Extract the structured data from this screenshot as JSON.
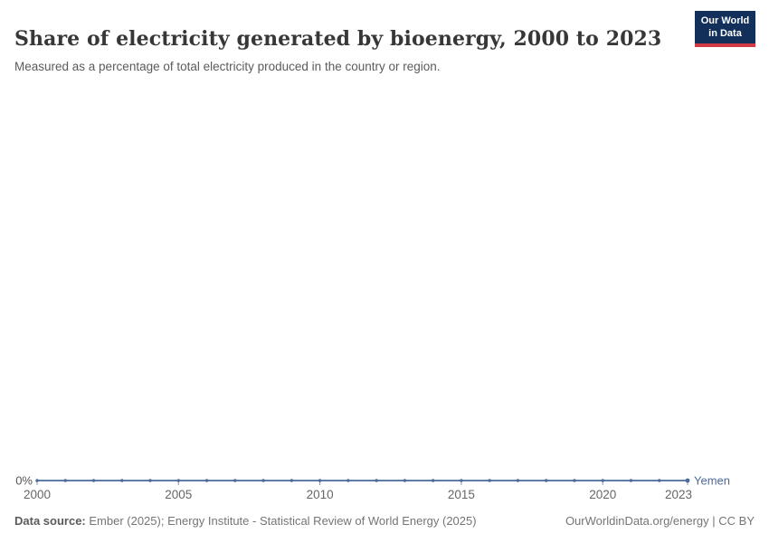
{
  "header": {
    "title": "Share of electricity generated by bioenergy, 2000 to 2023",
    "subtitle": "Measured as a percentage of total electricity produced in the country or region."
  },
  "logo": {
    "line1": "Our World",
    "line2": "in Data",
    "bg_color": "#12305a",
    "bar_color": "#d13a44"
  },
  "chart_data": {
    "type": "line",
    "title": "Share of electricity generated by bioenergy, 2000 to 2023",
    "xlabel": "",
    "ylabel": "",
    "y_axis": {
      "tick_label": "0%",
      "min": 0
    },
    "x_ticks": [
      2000,
      2005,
      2010,
      2015,
      2020,
      2023
    ],
    "xlim": [
      2000,
      2023
    ],
    "grid": false,
    "legend_position": "right-of-line",
    "series": [
      {
        "name": "Yemen",
        "color": "#4C6A9C",
        "x": [
          2000,
          2001,
          2002,
          2003,
          2004,
          2005,
          2006,
          2007,
          2008,
          2009,
          2010,
          2011,
          2012,
          2013,
          2014,
          2015,
          2016,
          2017,
          2018,
          2019,
          2020,
          2021,
          2022,
          2023
        ],
        "values": [
          0,
          0,
          0,
          0,
          0,
          0,
          0,
          0,
          0,
          0,
          0,
          0,
          0,
          0,
          0,
          0,
          0,
          0,
          0,
          0,
          0,
          0,
          0,
          0
        ]
      }
    ]
  },
  "axis_colors": {
    "tick": "#8b99a5",
    "tick_label": "#666666",
    "y_label": "#555555"
  },
  "footer": {
    "source_label": "Data source:",
    "source_text": " Ember (2025); Energy Institute - Statistical Review of World Energy (2025)",
    "right_text": "OurWorldinData.org/energy | CC BY"
  }
}
